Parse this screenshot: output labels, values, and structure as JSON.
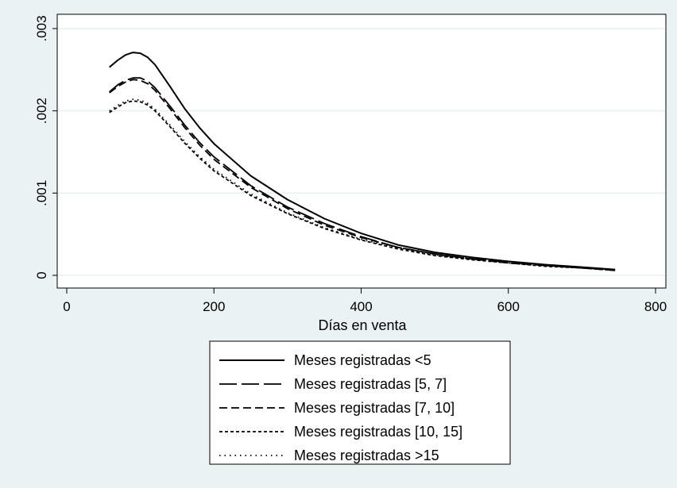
{
  "chart_data": {
    "type": "line",
    "title": "",
    "xlabel": "Días en venta",
    "ylabel": "",
    "xlim": [
      0,
      800
    ],
    "ylim": [
      0,
      0.003
    ],
    "grid": true,
    "legend_position": "bottom",
    "x_ticks": [
      0,
      200,
      400,
      600,
      800
    ],
    "x_tick_labels": [
      "0",
      "200",
      "400",
      "600",
      "800"
    ],
    "y_ticks": [
      0,
      0.001,
      0.002,
      0.003
    ],
    "y_tick_labels": [
      "0",
      ".001",
      ".002",
      ".003"
    ],
    "x": [
      58,
      70,
      80,
      90,
      100,
      110,
      120,
      140,
      160,
      180,
      200,
      250,
      300,
      350,
      400,
      450,
      500,
      550,
      600,
      650,
      700,
      745
    ],
    "series": [
      {
        "name": "Meses registradas <5",
        "style": "solid",
        "values": [
          0.00253,
          0.00262,
          0.00268,
          0.00271,
          0.0027,
          0.00265,
          0.00256,
          0.0023,
          0.00203,
          0.0018,
          0.0016,
          0.00121,
          0.00092,
          0.00069,
          0.00051,
          0.00037,
          0.00028,
          0.00022,
          0.00017,
          0.00013,
          0.0001,
          7e-05
        ]
      },
      {
        "name": "Meses registradas [5, 7]",
        "style": "long-dash",
        "values": [
          0.00223,
          0.00232,
          0.00237,
          0.0024,
          0.0024,
          0.00236,
          0.00228,
          0.00206,
          0.00183,
          0.00162,
          0.00144,
          0.00109,
          0.00083,
          0.00063,
          0.00047,
          0.00034,
          0.00026,
          0.0002,
          0.00016,
          0.00012,
          9e-05,
          7e-05
        ]
      },
      {
        "name": "Meses registradas [7, 10]",
        "style": "dash",
        "values": [
          0.00222,
          0.0023,
          0.00235,
          0.00238,
          0.00237,
          0.00233,
          0.00225,
          0.00203,
          0.0018,
          0.00159,
          0.00141,
          0.00107,
          0.00081,
          0.00061,
          0.00046,
          0.00034,
          0.00026,
          0.0002,
          0.00015,
          0.00012,
          9e-05,
          6e-05
        ]
      },
      {
        "name": "Meses registradas [10, 15]",
        "style": "short-dash",
        "values": [
          0.00198,
          0.00205,
          0.0021,
          0.00212,
          0.00211,
          0.00207,
          0.002,
          0.00181,
          0.00161,
          0.00143,
          0.00127,
          0.00097,
          0.00075,
          0.00057,
          0.00043,
          0.00032,
          0.00024,
          0.00019,
          0.00015,
          0.00011,
          9e-05,
          6e-05
        ]
      },
      {
        "name": "Meses registradas >15",
        "style": "dot",
        "values": [
          0.002,
          0.00207,
          0.00212,
          0.00214,
          0.00213,
          0.00209,
          0.00202,
          0.00183,
          0.00163,
          0.00145,
          0.00129,
          0.00099,
          0.00076,
          0.00058,
          0.00044,
          0.00033,
          0.00025,
          0.00019,
          0.00015,
          0.00011,
          9e-05,
          6e-05
        ]
      }
    ]
  }
}
